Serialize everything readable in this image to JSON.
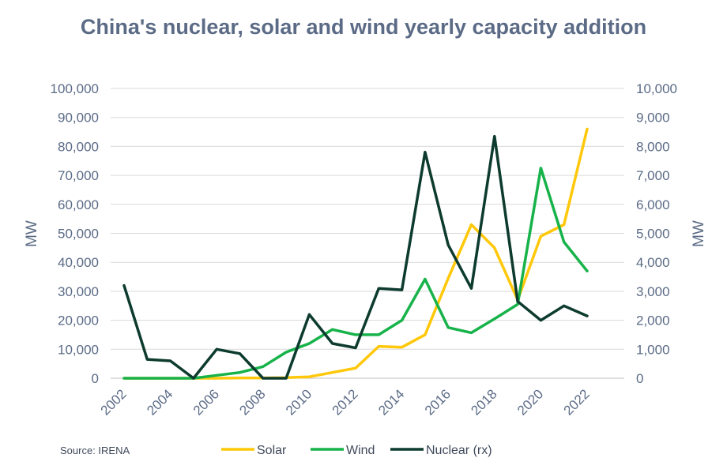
{
  "chart_data": {
    "type": "line",
    "title": "China's nuclear, solar and wind yearly capacity addition",
    "ylabel": "MW",
    "y2label": "MW",
    "ylim": [
      0,
      100000
    ],
    "y2lim": [
      0,
      10000
    ],
    "yticks": [
      "0",
      "10,000",
      "20,000",
      "30,000",
      "40,000",
      "50,000",
      "60,000",
      "70,000",
      "80,000",
      "90,000",
      "100,000"
    ],
    "y2ticks": [
      "0",
      "1,000",
      "2,000",
      "3,000",
      "4,000",
      "5,000",
      "6,000",
      "7,000",
      "8,000",
      "9,000",
      "10,000"
    ],
    "xtick_labels": [
      "2002",
      "2004",
      "2006",
      "2008",
      "2010",
      "2012",
      "2014",
      "2016",
      "2018",
      "2020",
      "2022"
    ],
    "x": [
      2002,
      2003,
      2004,
      2005,
      2006,
      2007,
      2008,
      2009,
      2010,
      2011,
      2012,
      2013,
      2014,
      2015,
      2016,
      2017,
      2018,
      2019,
      2020,
      2021,
      2022
    ],
    "grid": true,
    "legend_position": "bottom",
    "series": [
      {
        "name": "Solar",
        "axis": "left",
        "color": "#ffc80a",
        "values": [
          0,
          0,
          0,
          0,
          0,
          100,
          100,
          200,
          500,
          2000,
          3500,
          11000,
          10700,
          15000,
          34500,
          53000,
          45000,
          27000,
          49000,
          53000,
          86000
        ]
      },
      {
        "name": "Wind",
        "axis": "left",
        "color": "#17b34a",
        "values": [
          0,
          0,
          0,
          0,
          1000,
          2000,
          4000,
          9000,
          12000,
          16800,
          15000,
          15000,
          20000,
          34200,
          17500,
          15700,
          20500,
          25500,
          72500,
          47000,
          37000
        ]
      },
      {
        "name": "Nuclear (rx)",
        "axis": "right",
        "color": "#0d3b2e",
        "values": [
          3200,
          650,
          600,
          0,
          1000,
          850,
          0,
          0,
          2200,
          1200,
          1050,
          3100,
          3050,
          7800,
          4600,
          3100,
          8350,
          2650,
          2000,
          2500,
          2150
        ]
      }
    ],
    "source": "Source: IRENA"
  }
}
